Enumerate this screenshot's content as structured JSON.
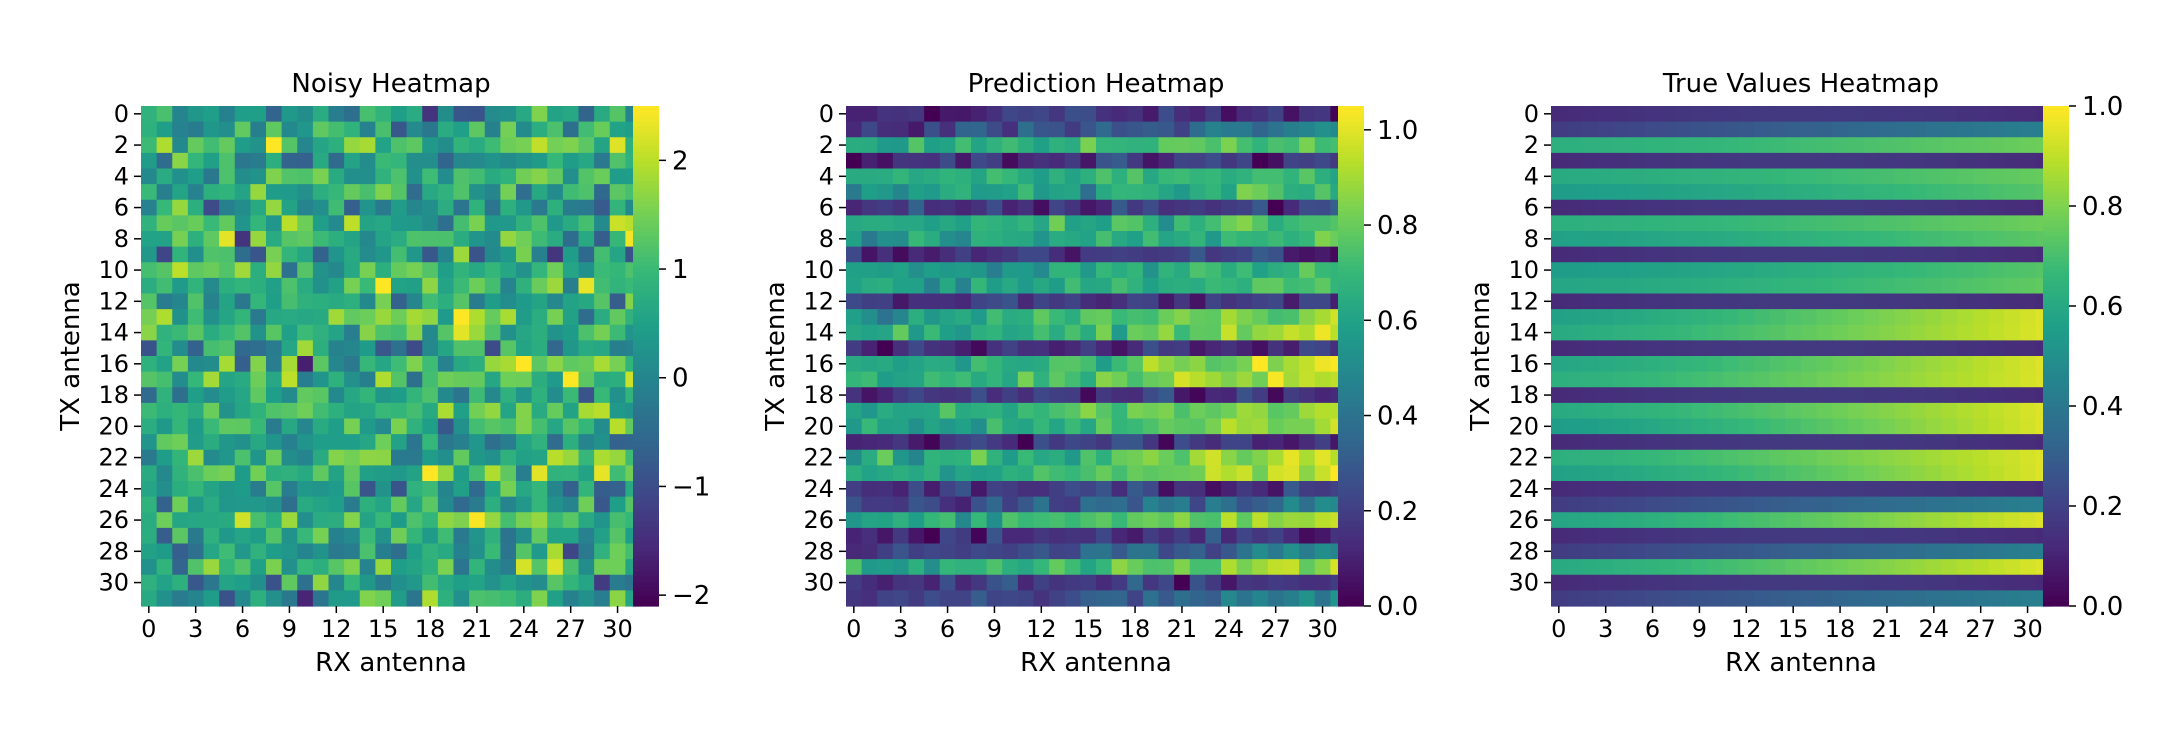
{
  "colormap": "viridis",
  "colormap_stops": [
    "#440154",
    "#482878",
    "#3e4989",
    "#31688e",
    "#26828e",
    "#1f9e89",
    "#35b779",
    "#6ece58",
    "#b5de2b",
    "#fde725"
  ],
  "chart_data": [
    {
      "type": "heatmap",
      "title": "Noisy Heatmap",
      "xlabel": "RX antenna",
      "ylabel": "TX antenna",
      "rows": 32,
      "cols": 32,
      "x_ticks": [
        "0",
        "3",
        "6",
        "9",
        "12",
        "15",
        "18",
        "21",
        "24",
        "27",
        "30"
      ],
      "y_ticks": [
        "0",
        "2",
        "4",
        "6",
        "8",
        "10",
        "12",
        "14",
        "16",
        "18",
        "20",
        "22",
        "24",
        "26",
        "28",
        "30"
      ],
      "value_range": [
        -2.1,
        2.5
      ],
      "colorbar_ticks": [
        -2,
        -1,
        0,
        1,
        2
      ],
      "colorbar_tick_labels": [
        "−2",
        "−1",
        "0",
        "1",
        "2"
      ],
      "pattern": "noisy row gradient",
      "values": []
    },
    {
      "type": "heatmap",
      "title": "Prediction Heatmap",
      "xlabel": "RX antenna",
      "ylabel": "TX antenna",
      "rows": 32,
      "cols": 32,
      "x_ticks": [
        "0",
        "3",
        "6",
        "9",
        "12",
        "15",
        "18",
        "21",
        "24",
        "27",
        "30"
      ],
      "y_ticks": [
        "0",
        "2",
        "4",
        "6",
        "8",
        "10",
        "12",
        "14",
        "16",
        "18",
        "20",
        "22",
        "24",
        "26",
        "28",
        "30"
      ],
      "value_range": [
        0.0,
        1.05
      ],
      "colorbar_ticks": [
        0.0,
        0.2,
        0.4,
        0.6,
        0.8,
        1.0
      ],
      "colorbar_tick_labels": [
        "0.0",
        "0.2",
        "0.4",
        "0.6",
        "0.8",
        "1.0"
      ],
      "pattern": "predicted row bands",
      "values": []
    },
    {
      "type": "heatmap",
      "title": "True Values Heatmap",
      "xlabel": "RX antenna",
      "ylabel": "TX antenna",
      "rows": 32,
      "cols": 32,
      "x_ticks": [
        "0",
        "3",
        "6",
        "9",
        "12",
        "15",
        "18",
        "21",
        "24",
        "27",
        "30"
      ],
      "y_ticks": [
        "0",
        "2",
        "4",
        "6",
        "8",
        "10",
        "12",
        "14",
        "16",
        "18",
        "20",
        "22",
        "24",
        "26",
        "28",
        "30"
      ],
      "value_range": [
        0.0,
        1.0
      ],
      "colorbar_ticks": [
        0.0,
        0.2,
        0.4,
        0.6,
        0.8,
        1.0
      ],
      "colorbar_tick_labels": [
        "0.0",
        "0.2",
        "0.4",
        "0.6",
        "0.8",
        "1.0"
      ],
      "pattern": "row bands with rightward gradient",
      "values": []
    }
  ]
}
